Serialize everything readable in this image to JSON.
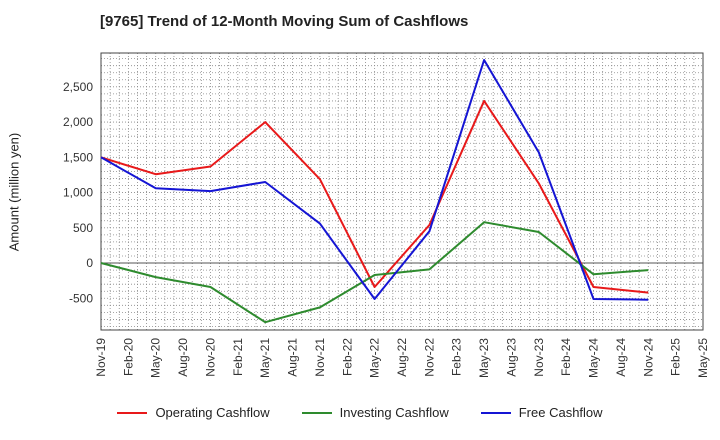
{
  "title": "[9765]  Trend of 12-Month Moving Sum of Cashflows",
  "chart_data": {
    "type": "line",
    "title": "[9765]  Trend of 12-Month Moving Sum of Cashflows",
    "ylabel": "Amount (million yen)",
    "xlabel": "",
    "ylim": [
      -950,
      2980
    ],
    "yticks": [
      -500,
      0,
      500,
      1000,
      1500,
      2000,
      2500
    ],
    "ytick_labels": [
      "-500",
      "0",
      "500",
      "1,000",
      "1,500",
      "2,000",
      "2,500"
    ],
    "x_tick_labels": [
      "Nov-19",
      "Feb-20",
      "May-20",
      "Aug-20",
      "Nov-20",
      "Feb-21",
      "May-21",
      "Aug-21",
      "Nov-21",
      "Feb-22",
      "May-22",
      "Aug-22",
      "Nov-22",
      "Feb-23",
      "May-23",
      "Aug-23",
      "Nov-23",
      "Feb-24",
      "May-24",
      "Aug-24",
      "Nov-24",
      "Feb-25",
      "May-25"
    ],
    "grid": true,
    "legend_position": "bottom",
    "series": [
      {
        "name": "Operating Cashflow",
        "color": "#e8191a",
        "x": [
          "Nov-19",
          "May-20",
          "Nov-20",
          "May-21",
          "Nov-21",
          "May-22",
          "Nov-22",
          "May-23",
          "Nov-23",
          "May-24",
          "Nov-24"
        ],
        "values": [
          1500,
          1260,
          1370,
          2000,
          1190,
          -340,
          540,
          2300,
          1130,
          -340,
          -420
        ]
      },
      {
        "name": "Investing Cashflow",
        "color": "#2e8b2e",
        "x": [
          "Nov-19",
          "May-20",
          "Nov-20",
          "May-21",
          "Nov-21",
          "May-22",
          "Nov-22",
          "May-23",
          "Nov-23",
          "May-24",
          "Nov-24"
        ],
        "values": [
          0,
          -200,
          -340,
          -840,
          -630,
          -170,
          -90,
          580,
          440,
          -160,
          -100
        ]
      },
      {
        "name": "Free Cashflow",
        "color": "#1515d4",
        "x": [
          "Nov-19",
          "May-20",
          "Nov-20",
          "May-21",
          "Nov-21",
          "May-22",
          "Aug-22",
          "Nov-22",
          "May-23",
          "Nov-23",
          "May-24",
          "Nov-24"
        ],
        "values": [
          1500,
          1060,
          1020,
          1150,
          560,
          -510,
          null,
          450,
          2880,
          1570,
          -510,
          -520
        ]
      }
    ]
  }
}
